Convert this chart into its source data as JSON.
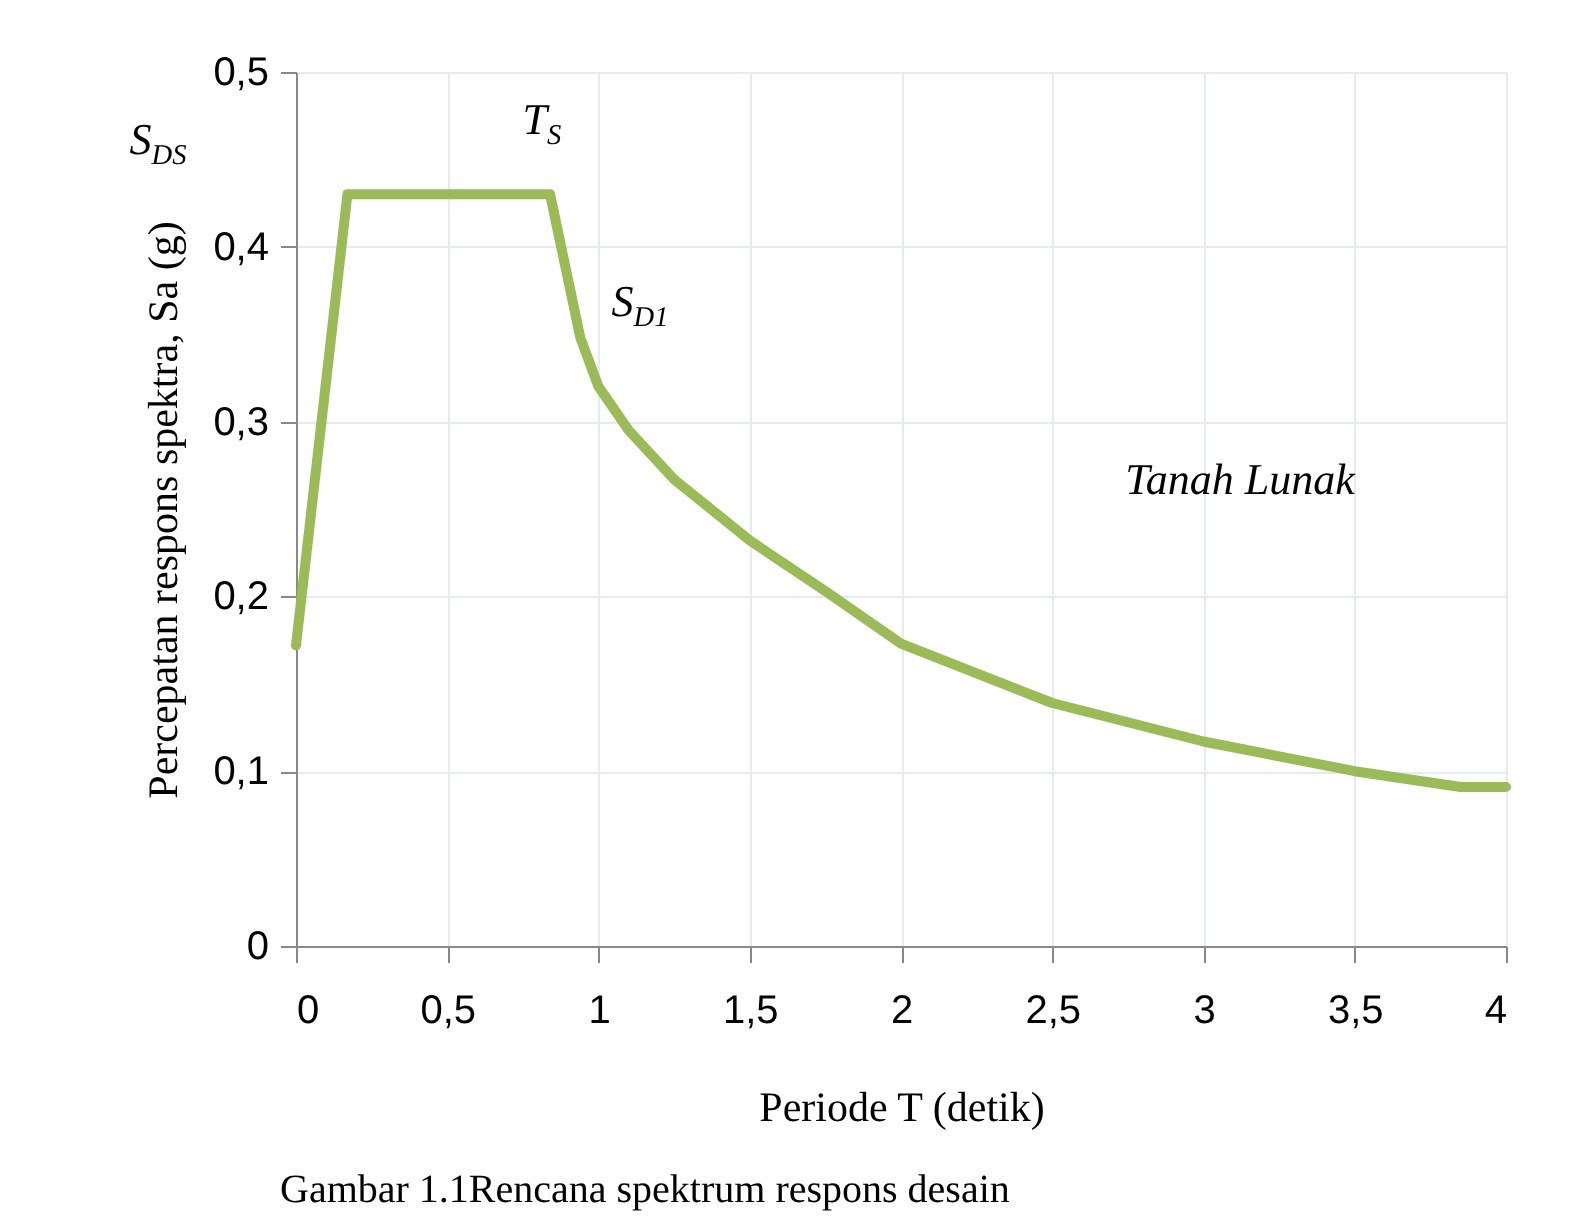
{
  "chart_data": {
    "type": "line",
    "xlabel": "Periode T (detik)",
    "ylabel": "Percepatan respons spektra, Sa (g)",
    "x": [
      0,
      0.17,
      0.84,
      0.94,
      1.0,
      1.1,
      1.25,
      1.5,
      1.75,
      2.0,
      2.5,
      3.0,
      3.5,
      3.85,
      4.0
    ],
    "series": [
      {
        "color": "#9bbb59",
        "values": [
          0.172,
          0.43,
          0.43,
          0.348,
          0.32,
          0.295,
          0.267,
          0.232,
          0.203,
          0.173,
          0.139,
          0.117,
          0.1,
          0.091,
          0.091
        ]
      }
    ],
    "xlim": [
      0,
      4
    ],
    "ylim": [
      0,
      0.5
    ],
    "xticks": [
      0,
      {
        "value": 0.5,
        "label": "0,5"
      },
      1,
      {
        "value": 1.5,
        "label": "1,5"
      },
      2,
      {
        "value": 2.5,
        "label": "2,5"
      },
      3,
      {
        "value": 3.5,
        "label": "3,5"
      },
      4
    ],
    "yticks": [
      0,
      {
        "value": 0.1,
        "label": "0,1"
      },
      {
        "value": 0.2,
        "label": "0,2"
      },
      {
        "value": 0.3,
        "label": "0,3"
      },
      {
        "value": 0.4,
        "label": "0,4"
      },
      {
        "value": 0.5,
        "label": "0,5"
      }
    ],
    "grid": true,
    "marker": "none",
    "line_style": "solid",
    "annotations": [
      "T$_{S}$",
      "S$_{DS}$",
      "S$_{D1}$",
      "Tanah Lunak",
      "Gambar 1.1Rencana spektrum respons desain"
    ]
  }
}
